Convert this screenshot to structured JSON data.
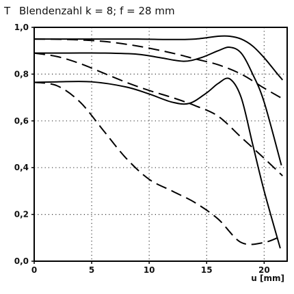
{
  "chart_data": {
    "type": "line",
    "title": "Blendenzahl k = 8; f = 28 mm",
    "ylabel": "T",
    "xlabel": "u [mm]",
    "xlim": [
      0,
      22
    ],
    "ylim": [
      0,
      1.0
    ],
    "xticks": [
      0,
      5,
      10,
      15,
      20
    ],
    "xtick_labels": [
      "0",
      "5",
      "10",
      "15",
      "20"
    ],
    "yticks": [
      0,
      0.2,
      0.4,
      0.6,
      0.8,
      1.0
    ],
    "ytick_labels": [
      "0,0",
      "0,2",
      "0,4",
      "0,6",
      "0,8",
      "1,0"
    ],
    "grid": "dotted",
    "series": [
      {
        "style": "solid",
        "x": [
          0,
          3,
          6,
          9,
          12,
          14,
          16,
          17,
          18,
          19,
          20,
          21,
          21.6
        ],
        "y": [
          0.95,
          0.95,
          0.95,
          0.95,
          0.948,
          0.95,
          0.962,
          0.962,
          0.95,
          0.92,
          0.87,
          0.81,
          0.775
        ]
      },
      {
        "style": "dashed",
        "x": [
          0,
          3,
          6,
          9,
          12,
          14,
          16,
          18,
          20,
          21.6
        ],
        "y": [
          0.95,
          0.948,
          0.94,
          0.92,
          0.89,
          0.865,
          0.84,
          0.8,
          0.74,
          0.695
        ]
      },
      {
        "style": "solid",
        "x": [
          0,
          3,
          6,
          9,
          11,
          13,
          14.5,
          16,
          17,
          18,
          19,
          20,
          21.5
        ],
        "y": [
          0.89,
          0.89,
          0.89,
          0.885,
          0.87,
          0.855,
          0.87,
          0.9,
          0.915,
          0.89,
          0.8,
          0.68,
          0.41
        ]
      },
      {
        "style": "dashed",
        "x": [
          0,
          2,
          4,
          6,
          8,
          10,
          12,
          14,
          16,
          18,
          20,
          21.6
        ],
        "y": [
          0.89,
          0.875,
          0.845,
          0.805,
          0.765,
          0.73,
          0.7,
          0.665,
          0.62,
          0.53,
          0.44,
          0.365
        ]
      },
      {
        "style": "solid",
        "x": [
          0,
          2,
          5,
          8,
          10,
          12,
          13.5,
          15,
          16,
          17,
          18,
          19,
          20,
          21.4
        ],
        "y": [
          0.765,
          0.767,
          0.767,
          0.745,
          0.715,
          0.68,
          0.675,
          0.72,
          0.76,
          0.78,
          0.7,
          0.5,
          0.3,
          0.055
        ]
      },
      {
        "style": "dashed",
        "x": [
          0,
          2,
          4,
          6,
          8,
          10,
          12,
          14,
          16,
          18,
          20,
          21.6
        ],
        "y": [
          0.765,
          0.75,
          0.68,
          0.56,
          0.44,
          0.35,
          0.3,
          0.25,
          0.18,
          0.08,
          0.08,
          0.11
        ]
      }
    ]
  }
}
